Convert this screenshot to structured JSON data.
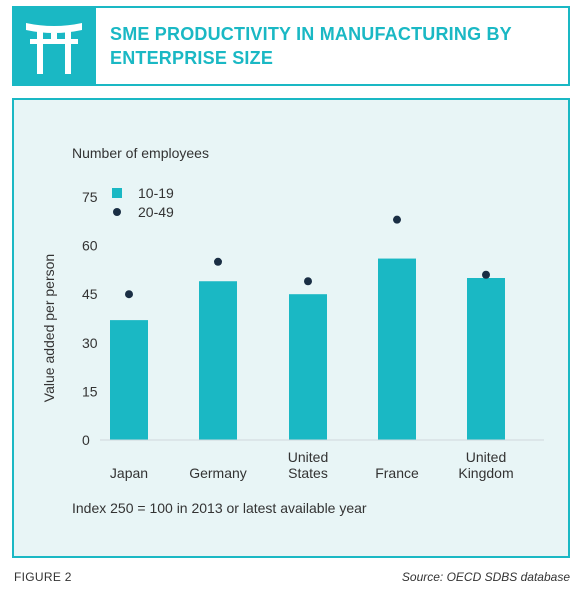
{
  "header": {
    "title": "SME PRODUCTIVITY IN MANUFACTURING BY ENTERPRISE SIZE",
    "icon": "torii-gate-icon"
  },
  "colors": {
    "accent": "#1ab8c4",
    "dot": "#1a2e44",
    "panel_bg": "#e8f5f6"
  },
  "chart_data": {
    "type": "bar",
    "title": "Number of employees",
    "ylabel": "Value added per person",
    "xlabel": "",
    "ylim": [
      0,
      75
    ],
    "yticks": [
      0,
      15,
      30,
      45,
      60,
      75
    ],
    "categories": [
      "Japan",
      "Germany",
      "United States",
      "France",
      "United Kingdom"
    ],
    "category_lines": [
      [
        "Japan"
      ],
      [
        "Germany"
      ],
      [
        "United",
        "States"
      ],
      [
        "France"
      ],
      [
        "United",
        "Kingdom"
      ]
    ],
    "series": [
      {
        "name": "10-19",
        "type": "bar",
        "values": [
          37,
          49,
          45,
          56,
          50
        ]
      },
      {
        "name": "20-49",
        "type": "dot",
        "values": [
          45,
          55,
          49,
          68,
          51
        ]
      }
    ],
    "legend_position": "top-left",
    "note": "Index 250 = 100 in 2013 or latest available year",
    "grid": false
  },
  "footer": {
    "figure_label": "FIGURE 2",
    "source": "Source: OECD SDBS database"
  }
}
